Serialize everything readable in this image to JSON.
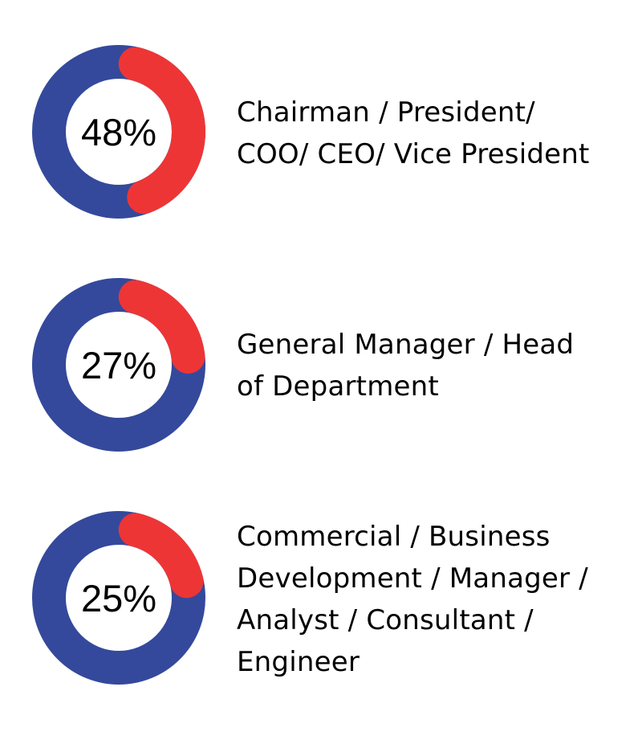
{
  "colors": {
    "base": "#34499b",
    "highlight": "#ee3535",
    "hole": "#ffffff",
    "text": "#000000"
  },
  "chart_data": [
    {
      "type": "pie",
      "value": 48,
      "label": "48%",
      "caption_lines": [
        "Chairman / President/",
        "COO/ CEO/ Vice President"
      ]
    },
    {
      "type": "pie",
      "value": 27,
      "label": "27%",
      "caption_lines": [
        "General Manager / Head",
        "of Department"
      ]
    },
    {
      "type": "pie",
      "value": 25,
      "label": "25%",
      "caption_lines": [
        "Commercial / Business",
        "Development / Manager /",
        "Analyst / Consultant /",
        "Engineer"
      ]
    }
  ]
}
